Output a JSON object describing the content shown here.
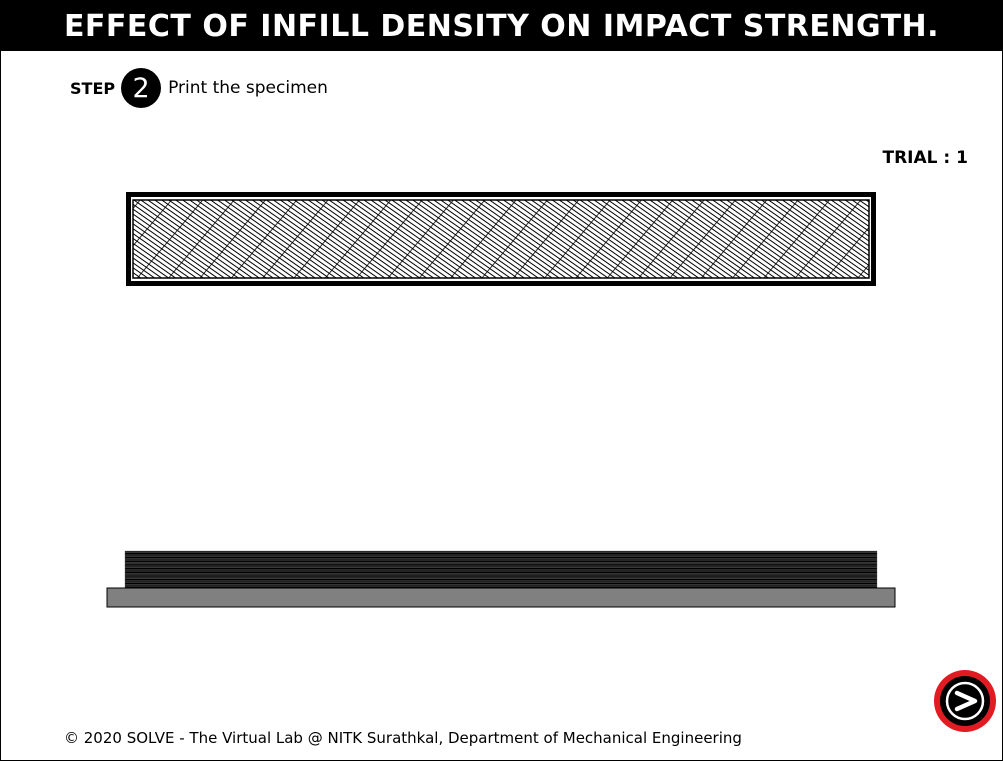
{
  "header": {
    "title": "EFFECT OF INFILL DENSITY ON IMPACT STRENGTH."
  },
  "step": {
    "label": "STEP",
    "number": "2",
    "instruction": "Print the specimen"
  },
  "trial": {
    "label": "TRIAL",
    "separator": ":",
    "value": "1"
  },
  "specimen": {
    "pattern": "diagonal-crosshatch-infill"
  },
  "printer": {
    "layers_printed": 20
  },
  "navigation": {
    "next_icon": "next-arrow-icon",
    "next_ring_color": "#e11b22"
  },
  "footer": {
    "copyright": "© 2020 SOLVE - The Virtual Lab @ NITK Surathkal, Department of Mechanical Engineering"
  },
  "colors": {
    "title_bar": "#000000",
    "build_plate": "#808080",
    "accent": "#e11b22"
  }
}
